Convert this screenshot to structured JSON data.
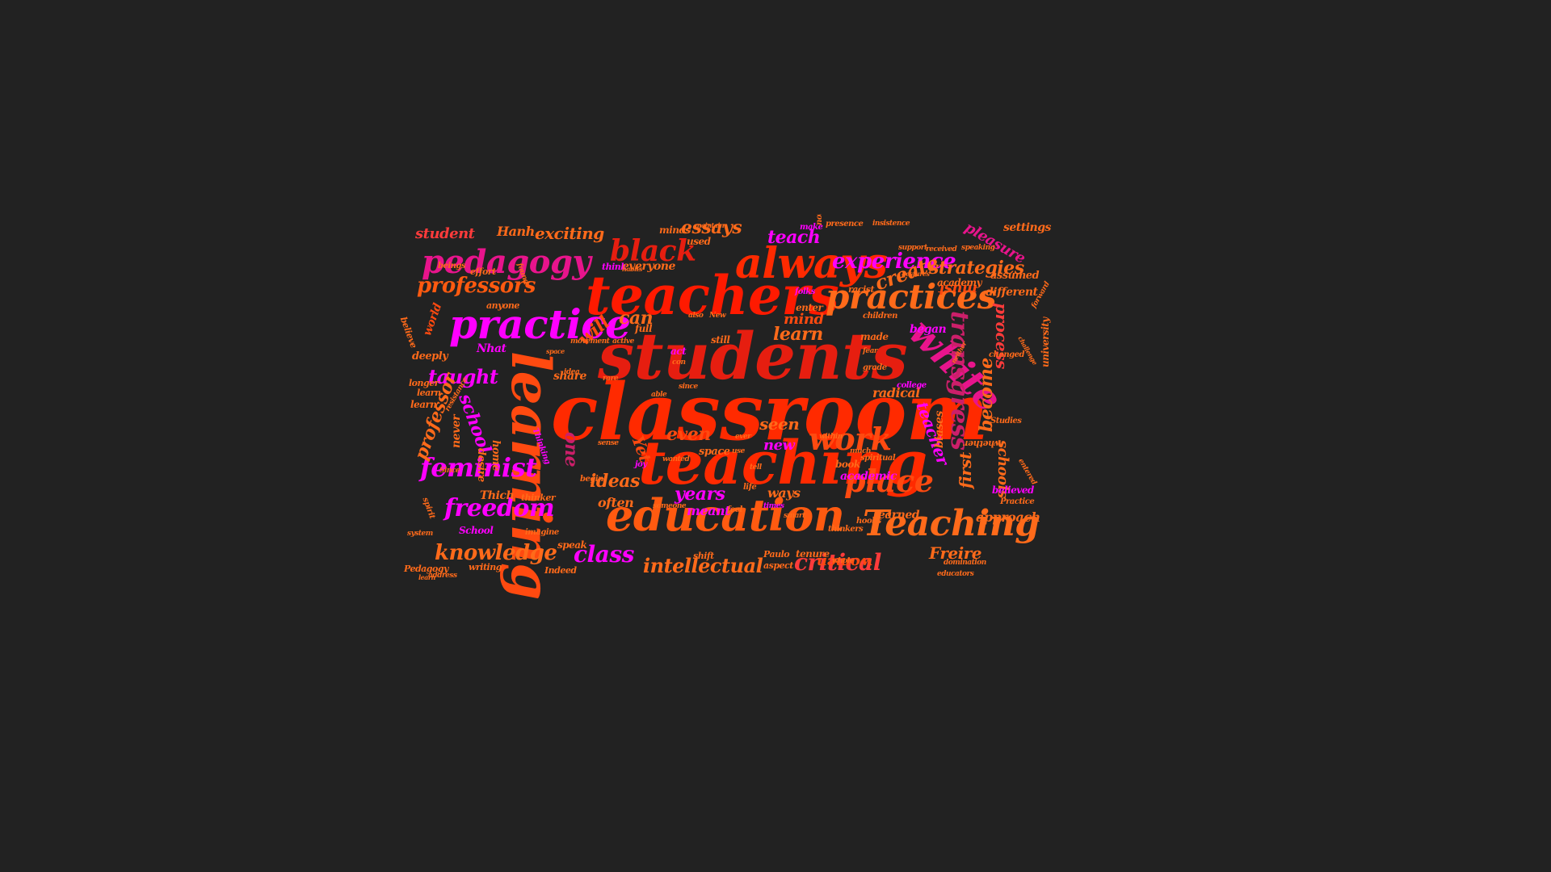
{
  "colors": {
    "background": "#222222",
    "palette": [
      "#ff2a00",
      "#e61e10",
      "#ff5a10",
      "#ff7a1a",
      "#ff00ff",
      "#e8148c",
      "#cc1f6a",
      "#ff3b3b"
    ]
  },
  "words": [
    {
      "text": "classroom",
      "color": "#ff2a00"
    },
    {
      "text": "students",
      "color": "#e61e10"
    },
    {
      "text": "teaching",
      "color": "#ff2a00"
    },
    {
      "text": "teachers",
      "color": "#ff1a00"
    },
    {
      "text": "learning",
      "color": "#ff4a10"
    },
    {
      "text": "education",
      "color": "#ff5a10"
    },
    {
      "text": "practice",
      "color": "#ff00ff"
    },
    {
      "text": "always",
      "color": "#ff2a00"
    },
    {
      "text": "practices",
      "color": "#ff6a1a"
    },
    {
      "text": "white",
      "color": "#e8148c"
    },
    {
      "text": "Teaching",
      "color": "#ff6a1a"
    },
    {
      "text": "pedagogy",
      "color": "#e8148c"
    },
    {
      "text": "black",
      "color": "#e61e10"
    },
    {
      "text": "work",
      "color": "#ff4a10"
    },
    {
      "text": "place",
      "color": "#ff4a10"
    },
    {
      "text": "feminist",
      "color": "#ff00ff"
    },
    {
      "text": "freedom",
      "color": "#ff00ff"
    },
    {
      "text": "knowledge",
      "color": "#ff6a1a"
    },
    {
      "text": "critical",
      "color": "#ff3b3b"
    },
    {
      "text": "intellectual",
      "color": "#ff6a1a"
    },
    {
      "text": "class",
      "color": "#ff00ff"
    },
    {
      "text": "experience",
      "color": "#ff00ff"
    },
    {
      "text": "professors",
      "color": "#ff5a10"
    },
    {
      "text": "transgress",
      "color": "#cc1f6a"
    },
    {
      "text": "strategies",
      "color": "#ff6a1a"
    },
    {
      "text": "create",
      "color": "#ff6a1a"
    },
    {
      "text": "exciting",
      "color": "#ff6a1a"
    },
    {
      "text": "essays",
      "color": "#ff6a1a"
    },
    {
      "text": "teach",
      "color": "#ff00ff"
    },
    {
      "text": "student",
      "color": "#ff3b3b"
    },
    {
      "text": "Hanh",
      "color": "#ff6a1a"
    },
    {
      "text": "taught",
      "color": "#ff00ff"
    },
    {
      "text": "school",
      "color": "#ff00ff"
    },
    {
      "text": "professor",
      "color": "#ff6a1a"
    },
    {
      "text": "ideas",
      "color": "#ff6a1a"
    },
    {
      "text": "years",
      "color": "#ff00ff"
    },
    {
      "text": "even",
      "color": "#ff4a10"
    },
    {
      "text": "seen",
      "color": "#ff6a1a"
    },
    {
      "text": "new",
      "color": "#ff00ff"
    },
    {
      "text": "one",
      "color": "#cc1f6a"
    },
    {
      "text": "Yet",
      "color": "#ff4a10"
    },
    {
      "text": "can",
      "color": "#ff6a1a"
    },
    {
      "text": "will",
      "color": "#ff4a10"
    },
    {
      "text": "learn",
      "color": "#ff6a1a"
    },
    {
      "text": "mind",
      "color": "#ff4a10"
    },
    {
      "text": "teacher",
      "color": "#ff00ff"
    },
    {
      "text": "become",
      "color": "#ff6a1a"
    },
    {
      "text": "first",
      "color": "#ff6a1a"
    },
    {
      "text": "process",
      "color": "#ff3b3b"
    },
    {
      "text": "must",
      "color": "#ff4a10"
    },
    {
      "text": "pleasure",
      "color": "#e8148c"
    },
    {
      "text": "settings",
      "color": "#ff6a1a"
    },
    {
      "text": "women",
      "color": "#ff4a10"
    },
    {
      "text": "Freire",
      "color": "#ff6a1a"
    },
    {
      "text": "approach",
      "color": "#ff6a1a"
    },
    {
      "text": "learned",
      "color": "#ff6a1a"
    },
    {
      "text": "began",
      "color": "#ff00ff"
    },
    {
      "text": "radical",
      "color": "#ff6a1a"
    },
    {
      "text": "academy",
      "color": "#ff6a1a"
    },
    {
      "text": "different",
      "color": "#ff6a1a"
    },
    {
      "text": "assumed",
      "color": "#ff6a1a"
    },
    {
      "text": "biases",
      "color": "#ff6a1a"
    },
    {
      "text": "schools",
      "color": "#ff6a1a"
    },
    {
      "text": "believed",
      "color": "#ff00ff"
    },
    {
      "text": "university",
      "color": "#ff6a1a"
    },
    {
      "text": "ways",
      "color": "#ff6a1a"
    },
    {
      "text": "meant",
      "color": "#ff00ff"
    },
    {
      "text": "often",
      "color": "#ff6a1a"
    },
    {
      "text": "Thich",
      "color": "#ff6a1a"
    },
    {
      "text": "Nhat",
      "color": "#ff00ff"
    },
    {
      "text": "share",
      "color": "#ff6a1a"
    },
    {
      "text": "book",
      "color": "#ff6a1a"
    },
    {
      "text": "tenure",
      "color": "#ff6a1a"
    },
    {
      "text": "speak",
      "color": "#ff6a1a"
    },
    {
      "text": "School",
      "color": "#ff00ff"
    },
    {
      "text": "writing",
      "color": "#ff6a1a"
    },
    {
      "text": "Indeed",
      "color": "#ff6a1a"
    },
    {
      "text": "Pedagogy",
      "color": "#ff6a1a"
    },
    {
      "text": "everyone",
      "color": "#ff6a1a"
    },
    {
      "text": "world",
      "color": "#ff4a10"
    },
    {
      "text": "deeply",
      "color": "#ff6a1a"
    },
    {
      "text": "never",
      "color": "#ff6a1a"
    },
    {
      "text": "desire",
      "color": "#ff6a1a"
    },
    {
      "text": "home",
      "color": "#ff6a1a"
    },
    {
      "text": "learn",
      "color": "#ff6a1a"
    },
    {
      "text": "full",
      "color": "#ff6a1a"
    },
    {
      "text": "act",
      "color": "#ff00ff"
    },
    {
      "text": "still",
      "color": "#ff6a1a"
    },
    {
      "text": "enter",
      "color": "#ff6a1a"
    },
    {
      "text": "made",
      "color": "#ff6a1a"
    },
    {
      "text": "children",
      "color": "#ff6a1a"
    },
    {
      "text": "college",
      "color": "#ff00ff"
    },
    {
      "text": "grade",
      "color": "#ff6a1a"
    },
    {
      "text": "changed",
      "color": "#ff6a1a"
    },
    {
      "text": "whether",
      "color": "#ff6a1a"
    },
    {
      "text": "Studies",
      "color": "#ff6a1a"
    },
    {
      "text": "Practice",
      "color": "#ff6a1a"
    },
    {
      "text": "educators",
      "color": "#ff6a1a"
    },
    {
      "text": "domination",
      "color": "#ff6a1a"
    },
    {
      "text": "hooks",
      "color": "#ff6a1a"
    },
    {
      "text": "thinkers",
      "color": "#ff6a1a"
    },
    {
      "text": "spiritual",
      "color": "#ff6a1a"
    },
    {
      "text": "academic",
      "color": "#ff00ff"
    },
    {
      "text": "presence",
      "color": "#ff6a1a"
    },
    {
      "text": "insistence",
      "color": "#ff6a1a"
    },
    {
      "text": "support",
      "color": "#ff6a1a"
    },
    {
      "text": "received",
      "color": "#ff6a1a"
    },
    {
      "text": "speaking",
      "color": "#ff6a1a"
    },
    {
      "text": "racist",
      "color": "#ff6a1a"
    },
    {
      "text": "notion",
      "color": "#ff6a1a"
    },
    {
      "text": "folks",
      "color": "#ff00ff"
    },
    {
      "text": "make",
      "color": "#ff00ff"
    },
    {
      "text": "used",
      "color": "#ff6a1a"
    },
    {
      "text": "minds",
      "color": "#ff6a1a"
    },
    {
      "text": "think",
      "color": "#ff00ff"
    },
    {
      "text": "effort",
      "color": "#ff6a1a"
    },
    {
      "text": "beings",
      "color": "#ff6a1a"
    },
    {
      "text": "anyone",
      "color": "#ff6a1a"
    },
    {
      "text": "believe",
      "color": "#ff6a1a"
    },
    {
      "text": "longer",
      "color": "#ff6a1a"
    },
    {
      "text": "learn",
      "color": "#ff6a1a"
    },
    {
      "text": "movement",
      "color": "#ff6a1a"
    },
    {
      "text": "active",
      "color": "#ff6a1a"
    },
    {
      "text": "idea",
      "color": "#ff6a1a"
    },
    {
      "text": "rare",
      "color": "#ff6a1a"
    },
    {
      "text": "able",
      "color": "#ff6a1a"
    },
    {
      "text": "since",
      "color": "#ff6a1a"
    },
    {
      "text": "space",
      "color": "#ff6a1a"
    },
    {
      "text": "wanted",
      "color": "#ff6a1a"
    },
    {
      "text": "sense",
      "color": "#ff6a1a"
    },
    {
      "text": "begin",
      "color": "#ff6a1a"
    },
    {
      "text": "thinker",
      "color": "#ff6a1a"
    },
    {
      "text": "imagine",
      "color": "#ff6a1a"
    },
    {
      "text": "joy",
      "color": "#ff00ff"
    },
    {
      "text": "life",
      "color": "#ff6a1a"
    },
    {
      "text": "feel",
      "color": "#ff6a1a"
    },
    {
      "text": "times",
      "color": "#ff00ff"
    },
    {
      "text": "shift",
      "color": "#ff6a1a"
    },
    {
      "text": "Paulo",
      "color": "#ff6a1a"
    },
    {
      "text": "aspect",
      "color": "#ff6a1a"
    },
    {
      "text": "whole",
      "color": "#ff6a1a"
    },
    {
      "text": "smart",
      "color": "#ff6a1a"
    },
    {
      "text": "within",
      "color": "#ff6a1a"
    },
    {
      "text": "much",
      "color": "#ff6a1a"
    },
    {
      "text": "use",
      "color": "#ff6a1a"
    },
    {
      "text": "ever",
      "color": "#ff6a1a"
    },
    {
      "text": "tell",
      "color": "#ff6a1a"
    },
    {
      "text": "also",
      "color": "#ff6a1a"
    },
    {
      "text": "New",
      "color": "#ff6a1a"
    },
    {
      "text": "con",
      "color": "#ff6a1a"
    },
    {
      "text": "address",
      "color": "#ff6a1a"
    },
    {
      "text": "system",
      "color": "#ff6a1a"
    },
    {
      "text": "spirit",
      "color": "#ff6a1a"
    },
    {
      "text": "someone",
      "color": "#ff6a1a"
    },
    {
      "text": "Thinking",
      "color": "#ff00ff"
    },
    {
      "text": "found",
      "color": "#ff6a1a"
    },
    {
      "text": "fear",
      "color": "#ff6a1a"
    },
    {
      "text": "gestures",
      "color": "#ff6a1a"
    },
    {
      "text": "maintain",
      "color": "#ff6a1a"
    },
    {
      "text": "habits",
      "color": "#ff6a1a"
    },
    {
      "text": "resistance",
      "color": "#ff6a1a"
    },
    {
      "text": "Since",
      "color": "#ff6a1a"
    },
    {
      "text": "entered",
      "color": "#ff6a1a"
    },
    {
      "text": "forward",
      "color": "#ff6a1a"
    },
    {
      "text": "challenge",
      "color": "#ff6a1a"
    },
    {
      "text": "neither",
      "color": "#ff6a1a"
    },
    {
      "text": "space",
      "color": "#ff6a1a"
    },
    {
      "text": "learn",
      "color": "#ff6a1a"
    }
  ]
}
